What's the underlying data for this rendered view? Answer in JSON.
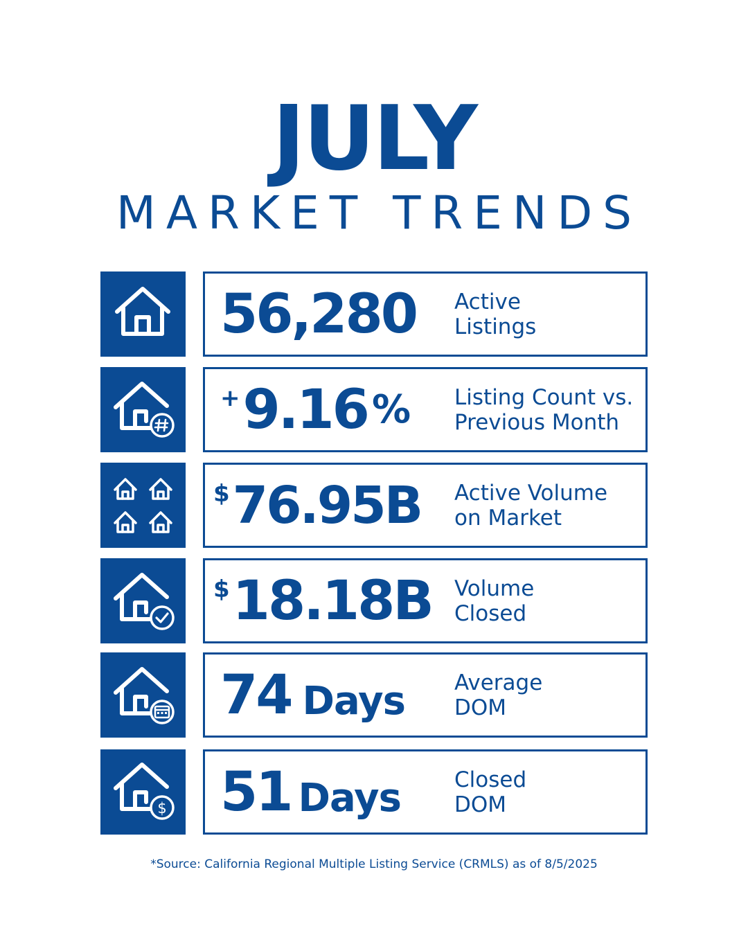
{
  "header": {
    "title": "JULY",
    "subtitle": "MARKET TRENDS"
  },
  "stats": [
    {
      "icon": "house-icon",
      "prefix": "",
      "value": "56,280",
      "suffix": "",
      "label_line1": "Active",
      "label_line2": "Listings"
    },
    {
      "icon": "house-hash-icon",
      "prefix": "+",
      "value": "9.16",
      "suffix": "%",
      "label_line1": "Listing Count vs.",
      "label_line2": "Previous Month"
    },
    {
      "icon": "four-houses-icon",
      "prefix": "$",
      "value": "76.95B",
      "suffix": "",
      "label_line1": "Active Volume",
      "label_line2": "on Market"
    },
    {
      "icon": "house-check-icon",
      "prefix": "$",
      "value": "18.18B",
      "suffix": "",
      "label_line1": "Volume",
      "label_line2": "Closed"
    },
    {
      "icon": "house-calendar-icon",
      "prefix": "",
      "value": "74",
      "suffix": "Days",
      "label_line1": "Average",
      "label_line2": "DOM"
    },
    {
      "icon": "house-dollar-icon",
      "prefix": "",
      "value": "51",
      "suffix": "Days",
      "label_line1": "Closed",
      "label_line2": "DOM"
    }
  ],
  "footer": {
    "source": "*Source: California Regional Multiple Listing Service (CRMLS) as of 8/5/2025"
  },
  "colors": {
    "brand_blue": "#0b4b94",
    "background": "#ffffff"
  }
}
